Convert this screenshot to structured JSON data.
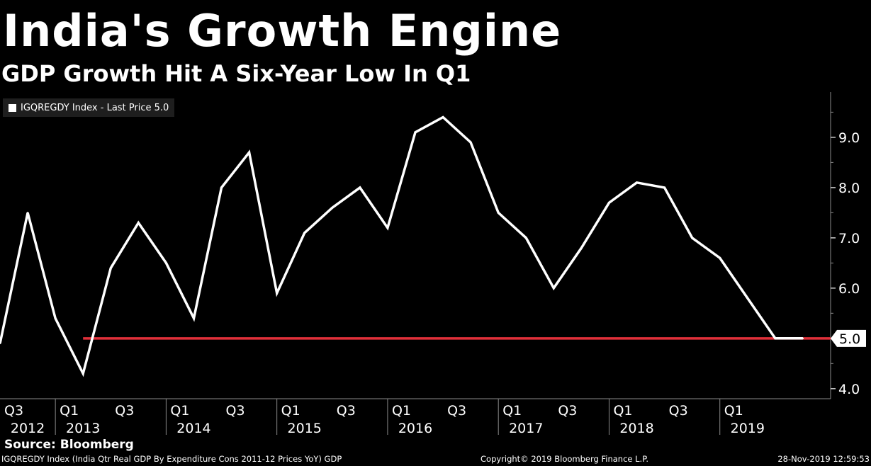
{
  "title": "India's Growth Engine",
  "subtitle": "GDP Growth Hit A Six-Year Low In Q1",
  "legend": {
    "label": "IGQREGDY Index - Last Price 5.0"
  },
  "source": "Source: Bloomberg",
  "footer": {
    "description": "IGQREGDY Index (India Qtr Real GDP By Expenditure Cons 2011-12 Prices YoY) GDP",
    "copyright": "Copyright© 2019 Bloomberg Finance L.P.",
    "timestamp": "28-Nov-2019 12:59:53"
  },
  "colors": {
    "line": "#ffffff",
    "reference": "#e0303a",
    "background": "#000000"
  },
  "chart_data": {
    "type": "line",
    "title": "India's Growth Engine",
    "subtitle": "GDP Growth Hit A Six-Year Low In Q1",
    "ylabel": "",
    "xlabel": "",
    "ylim": [
      3.8,
      9.9
    ],
    "yticks": [
      4.0,
      5.0,
      6.0,
      7.0,
      8.0,
      9.0
    ],
    "ytick_labels": [
      "4.0",
      "5.0",
      "6.0",
      "7.0",
      "8.0",
      "9.0"
    ],
    "xlim": [
      2012.375,
      2019.875
    ],
    "quarter_ticks": [
      {
        "label": "Q3",
        "x": 2012.5
      },
      {
        "label": "Q1",
        "x": 2013.0
      },
      {
        "label": "Q3",
        "x": 2013.5
      },
      {
        "label": "Q1",
        "x": 2014.0
      },
      {
        "label": "Q3",
        "x": 2014.5
      },
      {
        "label": "Q1",
        "x": 2015.0
      },
      {
        "label": "Q3",
        "x": 2015.5
      },
      {
        "label": "Q1",
        "x": 2016.0
      },
      {
        "label": "Q3",
        "x": 2016.5
      },
      {
        "label": "Q1",
        "x": 2017.0
      },
      {
        "label": "Q3",
        "x": 2017.5
      },
      {
        "label": "Q1",
        "x": 2018.0
      },
      {
        "label": "Q3",
        "x": 2018.5
      },
      {
        "label": "Q1",
        "x": 2019.0
      }
    ],
    "year_labels": [
      {
        "label": "2012",
        "x": 2012.625
      },
      {
        "label": "2013",
        "x": 2013.125
      },
      {
        "label": "2014",
        "x": 2014.125
      },
      {
        "label": "2015",
        "x": 2015.125
      },
      {
        "label": "2016",
        "x": 2016.125
      },
      {
        "label": "2017",
        "x": 2017.125
      },
      {
        "label": "2018",
        "x": 2018.125
      },
      {
        "label": "2019",
        "x": 2019.125
      }
    ],
    "year_separators": [
      2012.875,
      2013.875,
      2014.875,
      2015.875,
      2016.875,
      2017.875,
      2018.875
    ],
    "series": [
      {
        "name": "IGQREGDY Index",
        "x": [
          2012.375,
          2012.625,
          2012.875,
          2013.125,
          2013.375,
          2013.625,
          2013.875,
          2014.125,
          2014.375,
          2014.625,
          2014.875,
          2015.125,
          2015.375,
          2015.625,
          2015.875,
          2016.125,
          2016.375,
          2016.625,
          2016.875,
          2017.125,
          2017.375,
          2017.625,
          2017.875,
          2018.125,
          2018.375,
          2018.625,
          2018.875,
          2019.125,
          2019.375,
          2019.625
        ],
        "values": [
          4.9,
          7.5,
          5.4,
          4.3,
          6.4,
          7.3,
          6.5,
          5.4,
          8.0,
          8.7,
          5.9,
          7.1,
          7.6,
          8.0,
          7.2,
          9.1,
          9.4,
          8.9,
          7.5,
          7.0,
          6.0,
          6.8,
          7.7,
          8.1,
          8.0,
          7.0,
          6.6,
          5.8,
          5.0,
          5.0
        ]
      }
    ],
    "reference_line": {
      "value": 5.0,
      "x_start": 2013.125,
      "x_end": 2019.875
    },
    "last_value_label": "5.0"
  }
}
